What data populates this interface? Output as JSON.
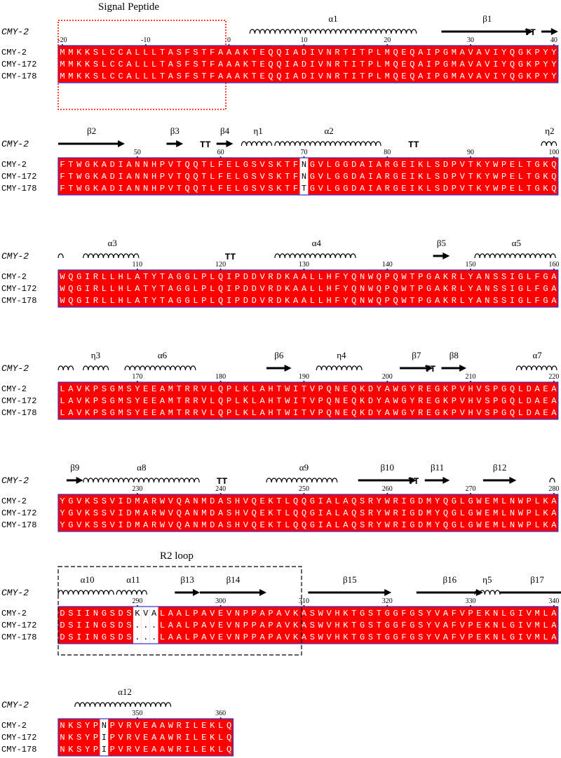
{
  "labels": {
    "signal_peptide": "Signal Peptide",
    "r2_loop": "R2 loop",
    "reference": "CMY-2",
    "sequence_names": [
      "CMY-2",
      "CMY-172",
      "CMY-178"
    ]
  },
  "colors": {
    "conserved_bg": "#ff0000",
    "conserved_text": "#ffffff",
    "variant_text": "#000000",
    "box_border": "#3333cc",
    "annotation": "#000000",
    "signal_box": "#ff0000",
    "r2_box": "#000000"
  },
  "blocks": [
    {
      "start": -20,
      "sequences": [
        "MMKKSLCCALLLTASFSTFAAAKTEQQIADIVNRTITPLMQEQAIPGMAVAVIYQGKPYY",
        "MMKKSLCCALLLTASFSTFAAAKTEQQIADIVNRTITPLMQEQAIPGMAVAVIYQGKPYY",
        "MMKKSLCCALLLTASFSTFAAAKTEQQIADIVNRTITPLMQEQAIPGMAVAVIYQGKPYY"
      ],
      "ticks": [
        -20,
        -10,
        0,
        10,
        20,
        30,
        40
      ],
      "variant_columns": [],
      "structure": [
        {
          "type": "helix",
          "label": "α1",
          "from": 4,
          "to": 23
        },
        {
          "type": "strand",
          "label": "β1",
          "from": 27,
          "to": 37
        },
        {
          "type": "turn",
          "label": "TT",
          "from": 37,
          "to": 38
        },
        {
          "type": "strand",
          "label": "",
          "from": 39,
          "to": 40
        }
      ]
    },
    {
      "start": 41,
      "sequences": [
        "FTWGKADIANNHPVTQQTLFELGSVSKTFNGVLGGDAIARGEIKLSDPVTKYWPELTGKQ",
        "FTWGKADIANNHPVTQQTLFELGSVSKTFNGVLGGDAIARGEIKLSDPVTKYWPELTGKQ",
        "FTWGKADIANNHPVTQQTLFELGSVSKTFTGVLGGDAIARGEIKLSDPVTKYWPELTGKQ"
      ],
      "ticks": [
        50,
        60,
        70,
        80,
        90,
        100
      ],
      "variant_columns": [
        29
      ],
      "structure": [
        {
          "type": "strand",
          "label": "β2",
          "from": 41,
          "to": 48
        },
        {
          "type": "strand",
          "label": "β3",
          "from": 54,
          "to": 55
        },
        {
          "type": "turn",
          "label": "TT",
          "from": 58,
          "to": 59
        },
        {
          "type": "strand",
          "label": "β4",
          "from": 60,
          "to": 61
        },
        {
          "type": "helix",
          "label": "η1",
          "from": 63,
          "to": 66
        },
        {
          "type": "helix",
          "label": "α2",
          "from": 67,
          "to": 79
        },
        {
          "type": "turn",
          "label": "TT",
          "from": 83,
          "to": 84
        },
        {
          "type": "helix",
          "label": "η2",
          "from": 99,
          "to": 100
        }
      ]
    },
    {
      "start": 101,
      "sequences": [
        "WQGIRLLHLATYTAGGLPLQIPDDVRDKAALLHFYQNWQPQWTPGAKRLYANSSIGLFGA",
        "WQGIRLLHLATYTAGGLPLQIPDDVRDKAALLHFYQNWQPQWTPGAKRLYANSSIGLFGA",
        "WQGIRLLHLATYTAGGLPLQIPDDVRDKAALLHFYQNWQPQWTPGAKRLYANSSIGLFGA"
      ],
      "ticks": [
        110,
        120,
        130,
        140,
        150,
        160
      ],
      "variant_columns": [],
      "structure": [
        {
          "type": "helix",
          "label": "",
          "from": 101,
          "to": 101
        },
        {
          "type": "helix",
          "label": "α3",
          "from": 104,
          "to": 110
        },
        {
          "type": "turn",
          "label": "TT",
          "from": 121,
          "to": 122
        },
        {
          "type": "helix",
          "label": "α4",
          "from": 127,
          "to": 136
        },
        {
          "type": "strand",
          "label": "β5",
          "from": 146,
          "to": 147
        },
        {
          "type": "helix",
          "label": "α5",
          "from": 151,
          "to": 160
        }
      ]
    },
    {
      "start": 161,
      "sequences": [
        "LAVKPSGMSYEEAMTRRVLQPLKLAHTWITVPQNEQKDYAWGYREGKPVHVSPGQLDAEA",
        "LAVKPSGMSYEEAMTRRVLQPLKLAHTWITVPQNEQKDYAWGYREGKPVHVSPGQLDAEA",
        "LAVKPSGMSYEEAMTRRVLQPLKLAHTWITVPQNEQKDYAWGYREGKPVHVSPGQLDAEA"
      ],
      "ticks": [
        170,
        180,
        190,
        200,
        210,
        220
      ],
      "variant_columns": [],
      "structure": [
        {
          "type": "helix",
          "label": "",
          "from": 161,
          "to": 162
        },
        {
          "type": "helix",
          "label": "η3",
          "from": 164,
          "to": 166
        },
        {
          "type": "helix",
          "label": "α6",
          "from": 169,
          "to": 177
        },
        {
          "type": "strand",
          "label": "β6",
          "from": 186,
          "to": 188
        },
        {
          "type": "helix",
          "label": "η4",
          "from": 192,
          "to": 197
        },
        {
          "type": "strand",
          "label": "β7",
          "from": 202,
          "to": 205
        },
        {
          "type": "turn",
          "label": "TT",
          "from": 205,
          "to": 206
        },
        {
          "type": "strand",
          "label": "β8",
          "from": 207,
          "to": 209
        },
        {
          "type": "helix",
          "label": "α7",
          "from": 216,
          "to": 220
        }
      ]
    },
    {
      "start": 221,
      "sequences": [
        "YGVKSSVIDMARWVQANMDASHVQEKTLQQGIALAQSRYWRIGDMYQGLGWEMLNWPLKA",
        "YGVKSSVIDMARWVQANMDASHVQEKTLQQGIALAQSRYWRIGDMYQGLGWEMLNWPLKA",
        "YGVKSSVIDMARWVQANMDASHVQEKTLQQGIALAQSRYWRIGDMYQGLGWEMLNWPLKA"
      ],
      "ticks": [
        230,
        240,
        250,
        260,
        270,
        280
      ],
      "variant_columns": [],
      "structure": [
        {
          "type": "strand",
          "label": "β9",
          "from": 222,
          "to": 223
        },
        {
          "type": "helix",
          "label": "α8",
          "from": 224,
          "to": 237
        },
        {
          "type": "turn",
          "label": "TT",
          "from": 240,
          "to": 241
        },
        {
          "type": "helix",
          "label": "α9",
          "from": 246,
          "to": 254
        },
        {
          "type": "strand",
          "label": "β10",
          "from": 257,
          "to": 263
        },
        {
          "type": "turn",
          "label": "TT",
          "from": 263,
          "to": 264
        },
        {
          "type": "strand",
          "label": "β11",
          "from": 265,
          "to": 267
        },
        {
          "type": "strand",
          "label": "β12",
          "from": 272,
          "to": 275
        },
        {
          "type": "helix",
          "label": "",
          "from": 280,
          "to": 280
        }
      ]
    },
    {
      "start": 281,
      "sequences": [
        "DSIINGSDSKVALAALPAVEVNPPAPAVKASWVHKTGSTGGFGSYVAFVPEKNLGIVMLA",
        "DSIINGSDS...LAALPAVEVNPPAPAVKASWVHKTGSTGGFGSYVAFVPEKNLGIVMLA",
        "DSIINGSDS...LAALPAVEVNPPAPAVKASWVHKTGSTGGFGSYVAFVPEKNLGIVMLA"
      ],
      "ticks": [
        290,
        300,
        310,
        320,
        330,
        340
      ],
      "variant_columns": [
        9,
        10,
        11
      ],
      "structure": [
        {
          "type": "helix",
          "label": "α10",
          "from": 281,
          "to": 287
        },
        {
          "type": "helix",
          "label": "α11",
          "from": 288,
          "to": 291
        },
        {
          "type": "strand",
          "label": "β13",
          "from": 295,
          "to": 297
        },
        {
          "type": "strand",
          "label": "β14",
          "from": 298,
          "to": 305
        },
        {
          "type": "strand",
          "label": "β15",
          "from": 311,
          "to": 320
        },
        {
          "type": "strand",
          "label": "β16",
          "from": 324,
          "to": 331
        },
        {
          "type": "helix",
          "label": "η5",
          "from": 331,
          "to": 333
        },
        {
          "type": "strand",
          "label": "β17",
          "from": 334,
          "to": 342
        }
      ]
    },
    {
      "start": 341,
      "sequences": [
        "NKSYPNPVRVEAAWRILEKLQ",
        "NKSYPIPVRVEAAWRILEKLQ",
        "NKSYPIPVRVEAAWRILEKLQ"
      ],
      "ticks": [
        350,
        360
      ],
      "variant_columns": [
        5
      ],
      "structure": [
        {
          "type": "helix",
          "label": "α12",
          "from": 343,
          "to": 354
        }
      ]
    }
  ]
}
